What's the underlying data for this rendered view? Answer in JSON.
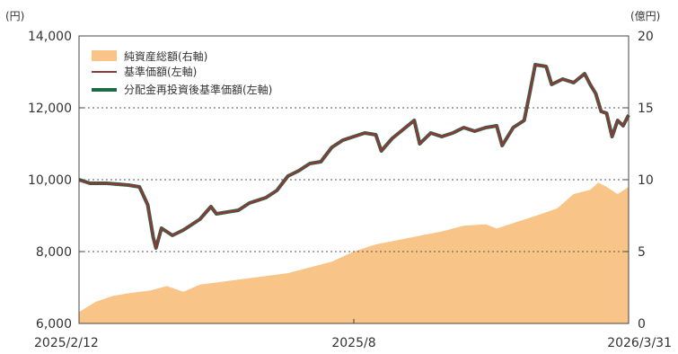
{
  "chart_data": {
    "type": "line",
    "left_unit": "(円)",
    "right_unit": "(億円)",
    "y_left": {
      "min": 6000,
      "max": 14000,
      "ticks": [
        "6,000",
        "8,000",
        "10,000",
        "12,000",
        "14,000"
      ],
      "tick_values": [
        6000,
        8000,
        10000,
        12000,
        14000
      ]
    },
    "y_right": {
      "min": 0,
      "max": 20,
      "ticks": [
        "0",
        "5",
        "10",
        "15",
        "20"
      ],
      "tick_values": [
        0,
        5,
        10,
        15,
        20
      ]
    },
    "x_ticks": [
      {
        "label": "2025/2/12",
        "t": 0.0
      },
      {
        "label": "2025/8",
        "t": 0.5
      },
      {
        "label": "2026/3/31",
        "t": 1.0
      }
    ],
    "grid": "dotted horizontal at 8,000 / 10,000 / 12,000",
    "legend_position": "top-left",
    "legend": [
      {
        "label": "純資産総額(右軸)",
        "color": "#f9c487",
        "kind": "area"
      },
      {
        "label": "基準価額(左軸)",
        "color": "#8b3a3a",
        "kind": "line"
      },
      {
        "label": "分配金再投資後基準価額(左軸)",
        "color": "#1d6b45",
        "kind": "line"
      }
    ],
    "series": [
      {
        "name": "純資産総額(右軸)",
        "axis": "right",
        "color": "#f9c487",
        "points": [
          [
            0.0,
            0.8
          ],
          [
            0.03,
            1.5
          ],
          [
            0.06,
            1.9
          ],
          [
            0.09,
            2.1
          ],
          [
            0.13,
            2.3
          ],
          [
            0.16,
            2.6
          ],
          [
            0.19,
            2.2
          ],
          [
            0.22,
            2.7
          ],
          [
            0.26,
            2.9
          ],
          [
            0.3,
            3.1
          ],
          [
            0.34,
            3.3
          ],
          [
            0.38,
            3.5
          ],
          [
            0.42,
            3.9
          ],
          [
            0.46,
            4.3
          ],
          [
            0.5,
            5.0
          ],
          [
            0.54,
            5.5
          ],
          [
            0.58,
            5.8
          ],
          [
            0.62,
            6.1
          ],
          [
            0.66,
            6.4
          ],
          [
            0.7,
            6.8
          ],
          [
            0.74,
            6.9
          ],
          [
            0.76,
            6.6
          ],
          [
            0.8,
            7.1
          ],
          [
            0.84,
            7.6
          ],
          [
            0.87,
            8.0
          ],
          [
            0.9,
            9.0
          ],
          [
            0.93,
            9.3
          ],
          [
            0.945,
            9.8
          ],
          [
            0.96,
            9.5
          ],
          [
            0.98,
            9.0
          ],
          [
            1.0,
            9.5
          ]
        ]
      },
      {
        "name": "基準価額(左軸)",
        "axis": "left",
        "color": "#8b3a3a",
        "points": [
          [
            0.0,
            10000
          ],
          [
            0.02,
            9900
          ],
          [
            0.05,
            9900
          ],
          [
            0.09,
            9850
          ],
          [
            0.11,
            9800
          ],
          [
            0.125,
            9300
          ],
          [
            0.135,
            8400
          ],
          [
            0.14,
            8100
          ],
          [
            0.15,
            8650
          ],
          [
            0.17,
            8450
          ],
          [
            0.19,
            8600
          ],
          [
            0.22,
            8900
          ],
          [
            0.24,
            9250
          ],
          [
            0.25,
            9050
          ],
          [
            0.27,
            9100
          ],
          [
            0.29,
            9150
          ],
          [
            0.31,
            9350
          ],
          [
            0.34,
            9500
          ],
          [
            0.36,
            9700
          ],
          [
            0.38,
            10100
          ],
          [
            0.4,
            10250
          ],
          [
            0.42,
            10450
          ],
          [
            0.44,
            10500
          ],
          [
            0.46,
            10900
          ],
          [
            0.48,
            11100
          ],
          [
            0.5,
            11200
          ],
          [
            0.52,
            11300
          ],
          [
            0.54,
            11250
          ],
          [
            0.55,
            10800
          ],
          [
            0.57,
            11150
          ],
          [
            0.59,
            11400
          ],
          [
            0.61,
            11650
          ],
          [
            0.62,
            11000
          ],
          [
            0.64,
            11300
          ],
          [
            0.66,
            11200
          ],
          [
            0.68,
            11300
          ],
          [
            0.7,
            11450
          ],
          [
            0.72,
            11350
          ],
          [
            0.74,
            11450
          ],
          [
            0.76,
            11500
          ],
          [
            0.77,
            10950
          ],
          [
            0.79,
            11450
          ],
          [
            0.81,
            11650
          ],
          [
            0.82,
            12400
          ],
          [
            0.83,
            13200
          ],
          [
            0.85,
            13150
          ],
          [
            0.86,
            12650
          ],
          [
            0.88,
            12800
          ],
          [
            0.9,
            12700
          ],
          [
            0.92,
            12950
          ],
          [
            0.93,
            12650
          ],
          [
            0.94,
            12400
          ],
          [
            0.95,
            11900
          ],
          [
            0.96,
            11850
          ],
          [
            0.97,
            11200
          ],
          [
            0.98,
            11650
          ],
          [
            0.99,
            11500
          ],
          [
            1.0,
            11800
          ]
        ]
      },
      {
        "name": "分配金再投資後基準価額(左軸)",
        "axis": "left",
        "color": "#1d6b45",
        "points": [
          [
            0.0,
            10000
          ],
          [
            0.02,
            9900
          ],
          [
            0.05,
            9900
          ],
          [
            0.09,
            9850
          ],
          [
            0.11,
            9800
          ],
          [
            0.125,
            9300
          ],
          [
            0.135,
            8400
          ],
          [
            0.14,
            8100
          ],
          [
            0.15,
            8650
          ],
          [
            0.17,
            8450
          ],
          [
            0.19,
            8600
          ],
          [
            0.22,
            8900
          ],
          [
            0.24,
            9250
          ],
          [
            0.25,
            9050
          ],
          [
            0.27,
            9100
          ],
          [
            0.29,
            9150
          ],
          [
            0.31,
            9350
          ],
          [
            0.34,
            9500
          ],
          [
            0.36,
            9700
          ],
          [
            0.38,
            10100
          ],
          [
            0.4,
            10250
          ],
          [
            0.42,
            10450
          ],
          [
            0.44,
            10500
          ],
          [
            0.46,
            10900
          ],
          [
            0.48,
            11100
          ],
          [
            0.5,
            11200
          ],
          [
            0.52,
            11300
          ],
          [
            0.54,
            11250
          ],
          [
            0.55,
            10800
          ],
          [
            0.57,
            11150
          ],
          [
            0.59,
            11400
          ],
          [
            0.61,
            11650
          ],
          [
            0.62,
            11000
          ],
          [
            0.64,
            11300
          ],
          [
            0.66,
            11200
          ],
          [
            0.68,
            11300
          ],
          [
            0.7,
            11450
          ],
          [
            0.72,
            11350
          ],
          [
            0.74,
            11450
          ],
          [
            0.76,
            11500
          ],
          [
            0.77,
            10950
          ],
          [
            0.79,
            11450
          ],
          [
            0.81,
            11650
          ],
          [
            0.82,
            12400
          ],
          [
            0.83,
            13200
          ],
          [
            0.85,
            13150
          ],
          [
            0.86,
            12650
          ],
          [
            0.88,
            12800
          ],
          [
            0.9,
            12700
          ],
          [
            0.92,
            12950
          ],
          [
            0.93,
            12650
          ],
          [
            0.94,
            12400
          ],
          [
            0.95,
            11900
          ],
          [
            0.96,
            11850
          ],
          [
            0.97,
            11200
          ],
          [
            0.98,
            11650
          ],
          [
            0.99,
            11500
          ],
          [
            1.0,
            11800
          ]
        ]
      }
    ]
  }
}
